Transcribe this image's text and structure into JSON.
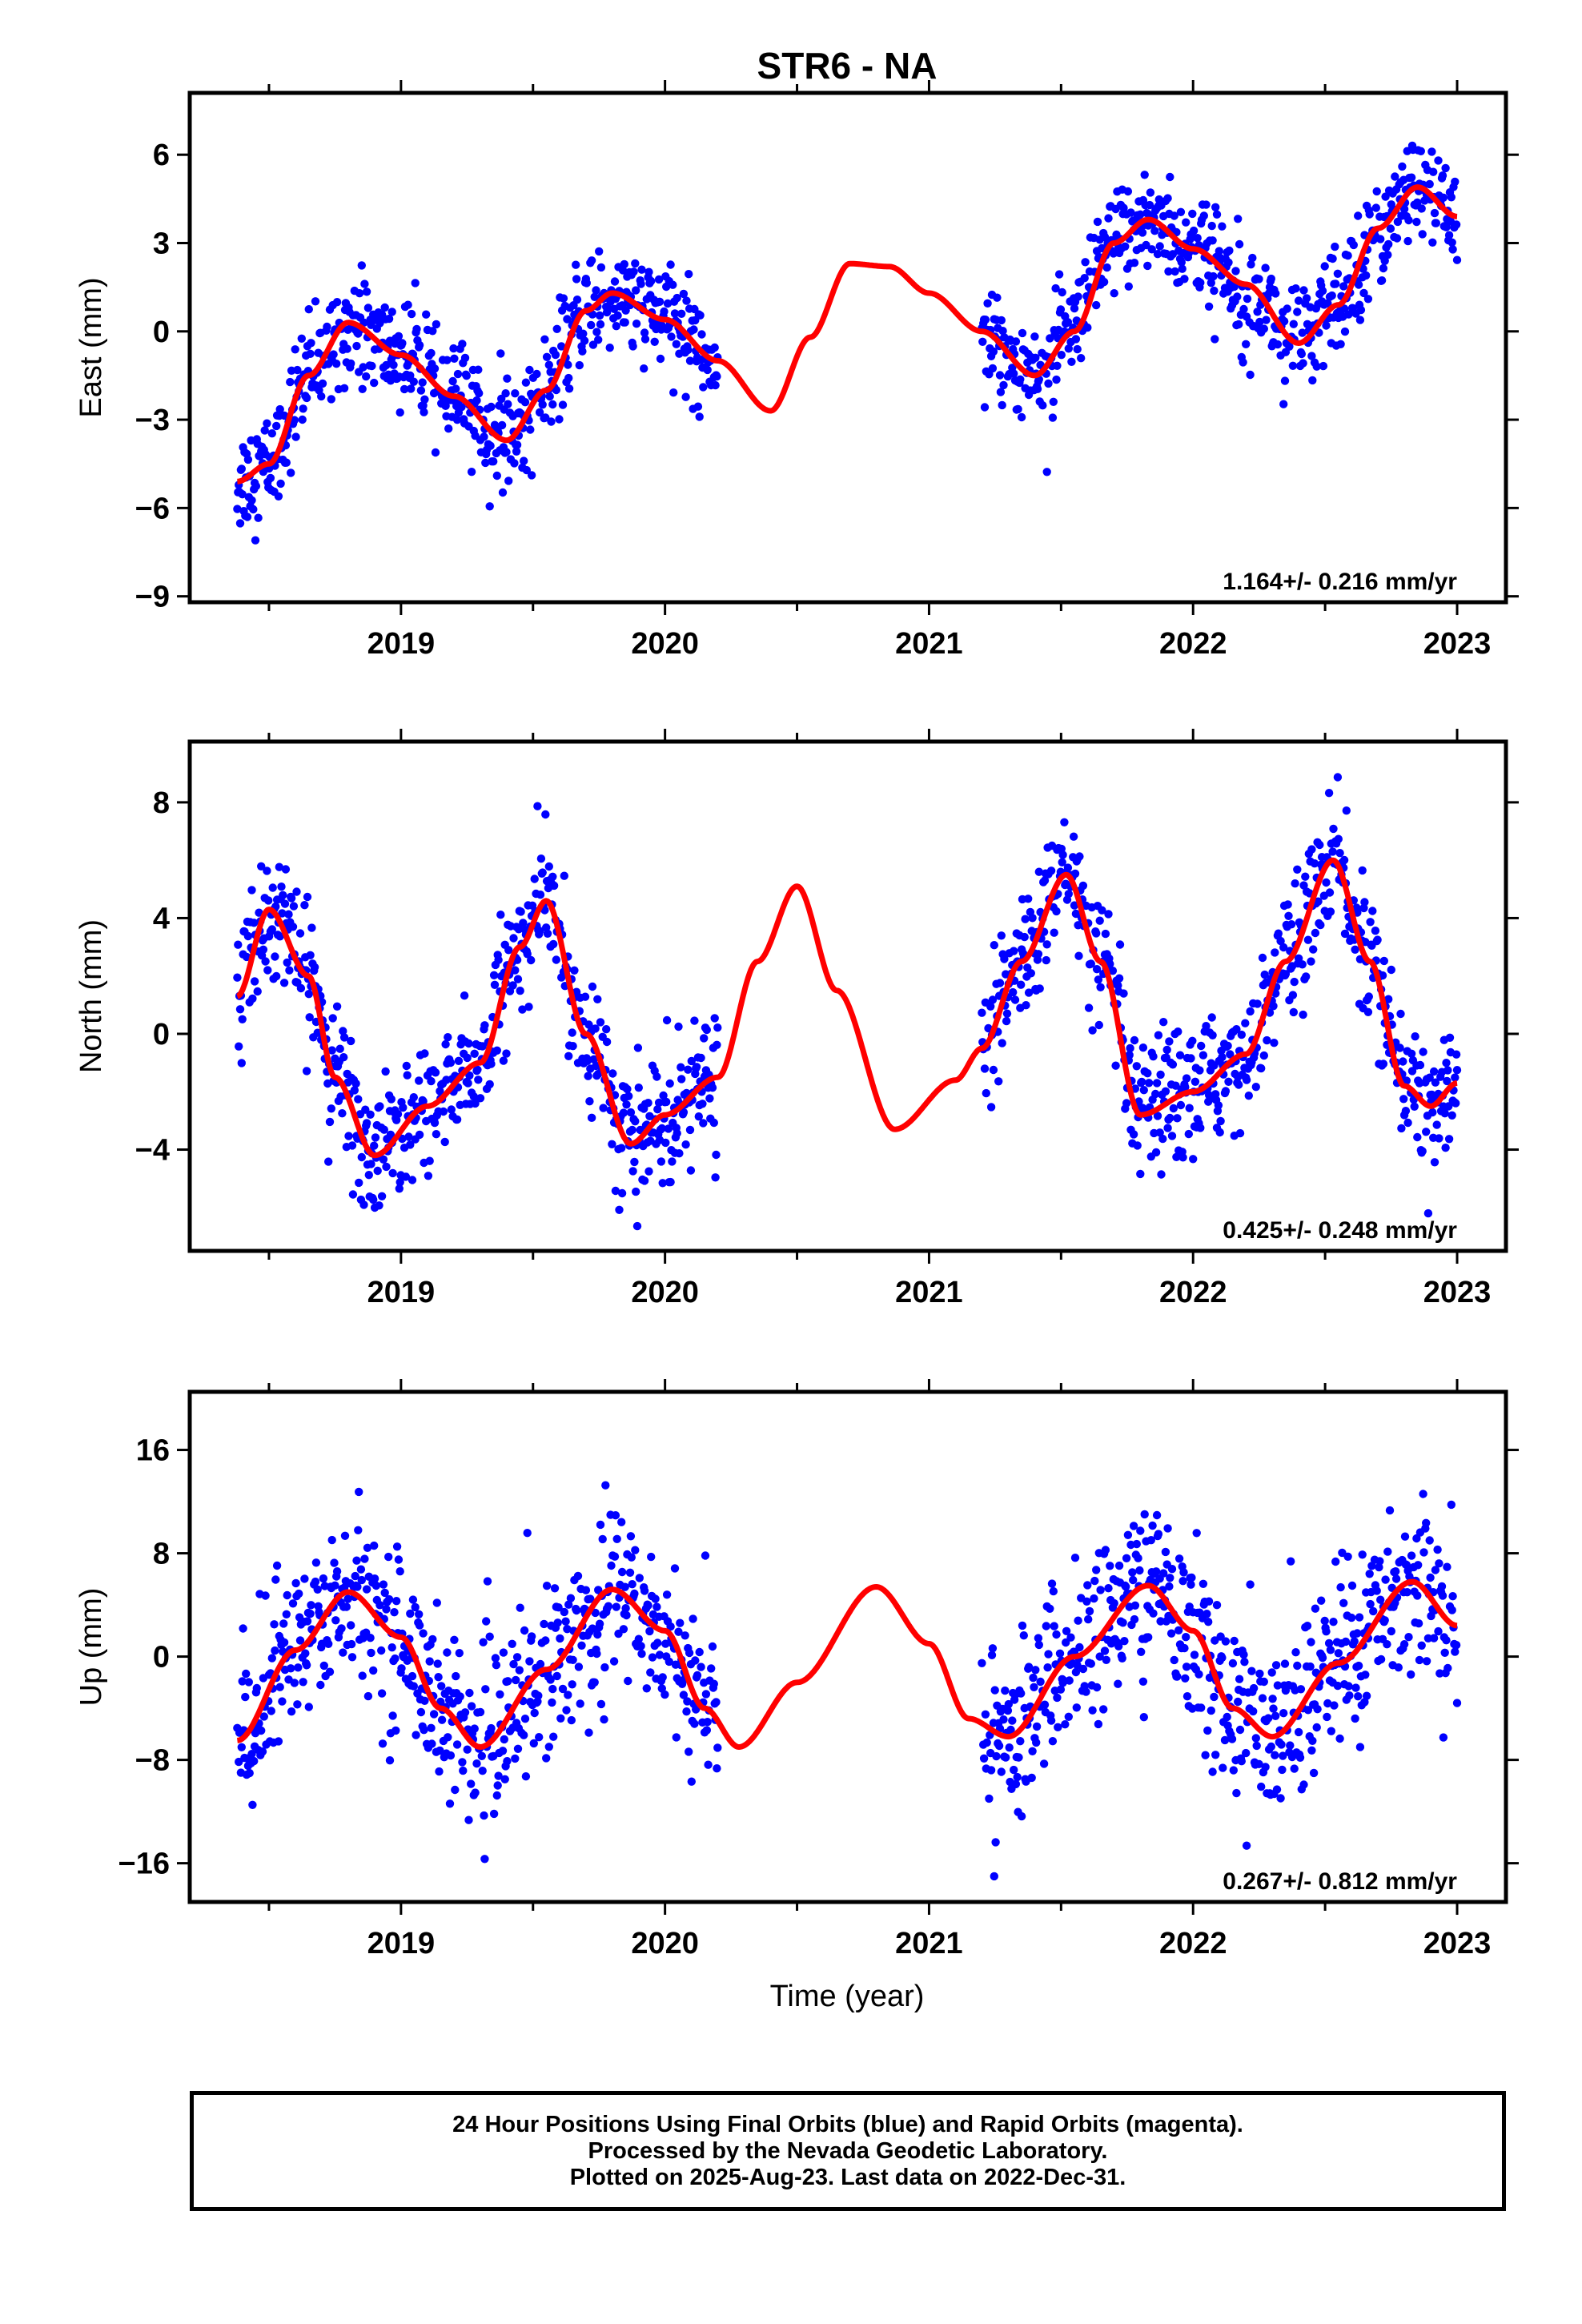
{
  "title": "STR6 - NA",
  "xlabel": "Time (year)",
  "caption": [
    "24 Hour Positions Using Final Orbits (blue) and Rapid Orbits (magenta).",
    "Processed by the Nevada Geodetic Laboratory.",
    "Plotted on 2025-Aug-23. Last data on 2022-Dec-31."
  ],
  "colors": {
    "observations": "#0000ff",
    "model": "#ff0000",
    "axis": "#000000"
  },
  "chart_data": [
    {
      "type": "scatter",
      "ylabel": "East (mm)",
      "xlim": [
        2018.3,
        2023.1
      ],
      "ylim": [
        -9.2,
        8.1
      ],
      "xticks": [
        2019,
        2020,
        2021,
        2022,
        2023
      ],
      "yticks": [
        -9,
        -6,
        -3,
        0,
        3,
        6
      ],
      "rate_text": "1.164+/- 0.216 mm/yr",
      "data_range": [
        2018.38,
        2020.2,
        2021.2,
        2023.0
      ],
      "noise": 0.9,
      "series": [
        {
          "kind": "line",
          "x": [
            2018.38,
            2018.5,
            2018.65,
            2018.8,
            2019.0,
            2019.2,
            2019.4,
            2019.55,
            2019.7,
            2019.8,
            2020.0,
            2020.2,
            2020.4,
            2020.55,
            2020.7,
            2020.85,
            2021.0,
            2021.2,
            2021.4,
            2021.55,
            2021.7,
            2021.83,
            2022.0,
            2022.2,
            2022.4,
            2022.55,
            2022.7,
            2022.85,
            2023.0
          ],
          "y": [
            -5.1,
            -4.5,
            -1.5,
            0.3,
            -0.8,
            -2.2,
            -3.7,
            -2.0,
            0.7,
            1.3,
            0.4,
            -1.0,
            -2.7,
            -0.2,
            2.3,
            2.2,
            1.3,
            0.0,
            -1.5,
            0.0,
            3.0,
            3.8,
            2.8,
            1.6,
            -0.4,
            0.9,
            3.5,
            4.9,
            3.9
          ]
        }
      ]
    },
    {
      "type": "scatter",
      "ylabel": "North (mm)",
      "xlim": [
        2018.3,
        2023.1
      ],
      "ylim": [
        -7.5,
        10.1
      ],
      "xticks": [
        2019,
        2020,
        2021,
        2022,
        2023
      ],
      "yticks": [
        -4,
        0,
        4,
        8
      ],
      "rate_text": "0.425+/- 0.248 mm/yr",
      "data_range": [
        2018.38,
        2020.2,
        2021.2,
        2023.0
      ],
      "noise": 1.1,
      "series": [
        {
          "kind": "line",
          "x": [
            2018.38,
            2018.5,
            2018.65,
            2018.75,
            2018.9,
            2019.1,
            2019.3,
            2019.45,
            2019.55,
            2019.7,
            2019.87,
            2020.0,
            2020.2,
            2020.35,
            2020.5,
            2020.65,
            2020.87,
            2021.1,
            2021.2,
            2021.35,
            2021.52,
            2021.65,
            2021.8,
            2022.0,
            2022.2,
            2022.35,
            2022.53,
            2022.67,
            2022.8,
            2022.9,
            2023.0
          ],
          "y": [
            1.3,
            4.3,
            2.0,
            -1.5,
            -4.2,
            -2.5,
            -1.0,
            3.0,
            4.6,
            0.0,
            -3.8,
            -2.8,
            -1.5,
            2.5,
            5.1,
            1.5,
            -3.3,
            -1.6,
            -0.5,
            2.5,
            5.5,
            2.5,
            -2.8,
            -2.0,
            -0.7,
            2.5,
            6.0,
            2.5,
            -1.8,
            -2.5,
            -1.7
          ]
        }
      ]
    },
    {
      "type": "scatter",
      "ylabel": "Up (mm)",
      "xlim": [
        2018.3,
        2023.1
      ],
      "ylim": [
        -19,
        20.5
      ],
      "xticks": [
        2019,
        2020,
        2021,
        2022,
        2023
      ],
      "yticks": [
        -16,
        -8,
        0,
        8,
        16
      ],
      "rate_text": "0.267+/- 0.812 mm/yr",
      "data_range": [
        2018.38,
        2020.2,
        2021.2,
        2023.0
      ],
      "noise": 3.3,
      "series": [
        {
          "kind": "line",
          "x": [
            2018.38,
            2018.6,
            2018.8,
            2019.0,
            2019.15,
            2019.3,
            2019.55,
            2019.8,
            2020.0,
            2020.15,
            2020.28,
            2020.5,
            2020.8,
            2021.0,
            2021.15,
            2021.3,
            2021.55,
            2021.83,
            2022.0,
            2022.15,
            2022.3,
            2022.55,
            2022.83,
            2023.0
          ],
          "y": [
            -6.5,
            0.5,
            5.0,
            1.5,
            -4.0,
            -7.0,
            -1.0,
            5.2,
            2.0,
            -4.0,
            -7.0,
            -2.0,
            5.4,
            1.0,
            -4.8,
            -6.2,
            0.0,
            5.5,
            2.0,
            -4.0,
            -6.2,
            -0.5,
            5.8,
            2.4
          ]
        }
      ]
    }
  ]
}
